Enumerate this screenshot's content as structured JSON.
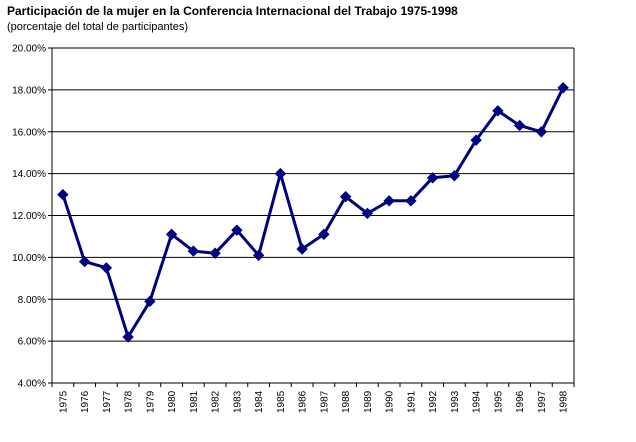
{
  "chart_data": {
    "type": "line",
    "title": "Participación de la mujer en la Conferencia Internacional del Trabajo 1975-1998",
    "subtitle": "(porcentaje del total de participantes)",
    "xlabel": "",
    "ylabel": "",
    "ylim": [
      0.04,
      0.2
    ],
    "yticks": [
      "4.00%",
      "6.00%",
      "8.00%",
      "10.00%",
      "12.00%",
      "14.00%",
      "16.00%",
      "18.00%",
      "20.00%"
    ],
    "grid": true,
    "legend": "none",
    "categories": [
      "1975",
      "1976",
      "1977",
      "1978",
      "1979",
      "1980",
      "1981",
      "1982",
      "1983",
      "1984",
      "1985",
      "1986",
      "1987",
      "1988",
      "1989",
      "1990",
      "1991",
      "1992",
      "1993",
      "1994",
      "1995",
      "1996",
      "1997",
      "1998"
    ],
    "series": [
      {
        "color": "#000080",
        "values": [
          0.13,
          0.098,
          0.095,
          0.062,
          0.079,
          0.111,
          0.103,
          0.102,
          0.113,
          0.101,
          0.14,
          0.104,
          0.111,
          0.129,
          0.121,
          0.127,
          0.127,
          0.138,
          0.139,
          0.156,
          0.17,
          0.163,
          0.16,
          0.181
        ]
      }
    ]
  }
}
